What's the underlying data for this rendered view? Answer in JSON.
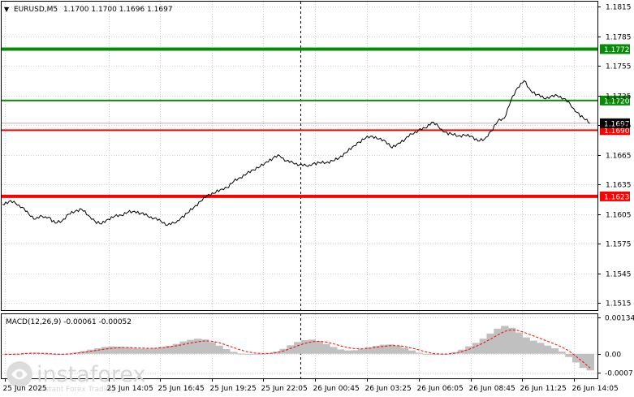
{
  "header": {
    "arrow_glyph": "▼",
    "symbol": "EURUSD,M5",
    "ohlc": "1.1700 1.1700 1.1696 1.1697"
  },
  "macd": {
    "label": "MACD(12,26,9) -0.00061 -0.00052"
  },
  "watermark": {
    "brand": "instaforex",
    "tagline": "Instant Forex Trading",
    "colors": {
      "circle": "#dddddd",
      "text": "#cfcfcf"
    }
  },
  "colors": {
    "green_line": "#078b07",
    "red_line": "#ff0000",
    "price_line": "#000000",
    "histogram": "#c0c0c0",
    "signal": "#ff0000",
    "grid": "#cfcfcf"
  },
  "chart_data": [
    {
      "type": "line",
      "title": "EURUSD,M5",
      "y_ticks": [
        "1.1815",
        "1.1785",
        "1.1755",
        "1.1725",
        "1.1695",
        "1.1665",
        "1.1635",
        "1.1605",
        "1.1575",
        "1.1545",
        "1.1515"
      ],
      "ylim": [
        1.1508,
        1.182
      ],
      "x_ticks": [
        "25 Jun 2025",
        "25 Jun 14:05",
        "25 Jun 16:45",
        "25 Jun 19:25",
        "25 Jun 22:05",
        "26 Jun 00:45",
        "26 Jun 03:25",
        "26 Jun 06:05",
        "26 Jun 08:45",
        "26 Jun 11:25",
        "26 Jun 14:05"
      ],
      "levels": [
        {
          "value": 1.1772,
          "label": "1.1772",
          "color": "#078b07",
          "thick": true
        },
        {
          "value": 1.172,
          "label": "1.1720",
          "color": "#078b07",
          "thick": false
        },
        {
          "value": 1.169,
          "label": "1.1690",
          "color": "#ff0000",
          "thick": false
        },
        {
          "value": 1.1623,
          "label": "1.1623",
          "color": "#ff0000",
          "thick": true
        }
      ],
      "current": {
        "value": 1.1697,
        "label": "1.1697"
      },
      "price_series": [
        1.1615,
        1.1618,
        1.1616,
        1.1612,
        1.1605,
        1.16,
        1.1603,
        1.1602,
        1.1596,
        1.1598,
        1.1605,
        1.1608,
        1.161,
        1.1604,
        1.1598,
        1.1595,
        1.16,
        1.1603,
        1.1604,
        1.1607,
        1.1608,
        1.1606,
        1.1603,
        1.1601,
        1.1598,
        1.1594,
        1.1596,
        1.1601,
        1.1606,
        1.1612,
        1.1618,
        1.1624,
        1.1626,
        1.163,
        1.1632,
        1.1638,
        1.1642,
        1.1646,
        1.165,
        1.1653,
        1.1658,
        1.1662,
        1.1664,
        1.1659,
        1.1657,
        1.1655,
        1.1654,
        1.1656,
        1.1657,
        1.1657,
        1.1659,
        1.1662,
        1.1667,
        1.1673,
        1.1678,
        1.1682,
        1.1684,
        1.1681,
        1.1679,
        1.1672,
        1.1677,
        1.1681,
        1.1686,
        1.169,
        1.1692,
        1.1698,
        1.1694,
        1.1688,
        1.1686,
        1.1684,
        1.1685,
        1.1684,
        1.1679,
        1.1681,
        1.1689,
        1.1699,
        1.1702,
        1.172,
        1.1733,
        1.174,
        1.173,
        1.1726,
        1.1722,
        1.1724,
        1.1725,
        1.1722,
        1.1716,
        1.1708,
        1.1702,
        1.1697
      ],
      "series": [
        {
          "name": "MACD",
          "ylim": [
            -0.0009,
            0.00145
          ],
          "y_ticks": [
            "0.00134",
            "0.00",
            "-0.0007"
          ],
          "values": [
            -3e-05,
            -2e-05,
            0.0,
            3e-05,
            4e-05,
            2e-05,
            -2e-05,
            -4e-05,
            -2e-05,
            1e-05,
            5e-05,
            0.0001,
            0.00015,
            0.0002,
            0.00025,
            0.00027,
            0.00026,
            0.00024,
            0.00021,
            0.00019,
            0.00019,
            0.00021,
            0.00025,
            0.00029,
            0.00036,
            0.00045,
            0.00051,
            0.00055,
            0.00052,
            0.00043,
            0.0003,
            0.00017,
            7e-05,
            1e-05,
            -1e-05,
            -2e-05,
            -1e-05,
            2e-05,
            8e-05,
            0.00018,
            0.00031,
            0.00043,
            0.0005,
            0.00052,
            0.00046,
            0.00036,
            0.00025,
            0.00016,
            0.00012,
            0.00013,
            0.00017,
            0.00023,
            0.00029,
            0.00033,
            0.00034,
            0.0003,
            0.00022,
            0.00012,
            4e-05,
            -2e-05,
            -4e-05,
            -3e-05,
            0.0,
            6e-05,
            0.00015,
            0.00027,
            0.0004,
            0.00055,
            0.00074,
            0.00092,
            0.00102,
            0.00095,
            0.00078,
            0.0006,
            0.00048,
            0.0004,
            0.0003,
            0.0002,
            8e-05,
            -0.00012,
            -0.00032,
            -0.00052,
            -0.00061
          ]
        },
        {
          "name": "Signal",
          "values": [
            -2e-05,
            -2e-05,
            -1e-05,
            1e-05,
            2e-05,
            2e-05,
            1e-05,
            -1e-05,
            -2e-05,
            -1e-05,
            2e-05,
            5e-05,
            9e-05,
            0.00013,
            0.00017,
            0.0002,
            0.00022,
            0.00023,
            0.00022,
            0.00021,
            0.0002,
            0.0002,
            0.00022,
            0.00025,
            0.00029,
            0.00034,
            0.00039,
            0.00044,
            0.00047,
            0.00046,
            0.00041,
            0.00032,
            0.00023,
            0.00014,
            7e-05,
            3e-05,
            1e-05,
            1e-05,
            4e-05,
            0.0001,
            0.00019,
            0.00029,
            0.00038,
            0.00044,
            0.00046,
            0.00043,
            0.00037,
            0.00029,
            0.00023,
            0.00019,
            0.00018,
            0.0002,
            0.00024,
            0.00027,
            0.0003,
            0.0003,
            0.00027,
            0.00021,
            0.00014,
            7e-05,
            1e-05,
            -1e-05,
            -1e-05,
            2e-05,
            8e-05,
            0.00016,
            0.00027,
            0.00039,
            0.00053,
            0.00068,
            0.00082,
            0.00088,
            0.00085,
            0.00076,
            0.00066,
            0.00056,
            0.00046,
            0.00036,
            0.00025,
            0.00011,
            -9e-05,
            -0.0003,
            -0.00052
          ]
        }
      ]
    }
  ]
}
